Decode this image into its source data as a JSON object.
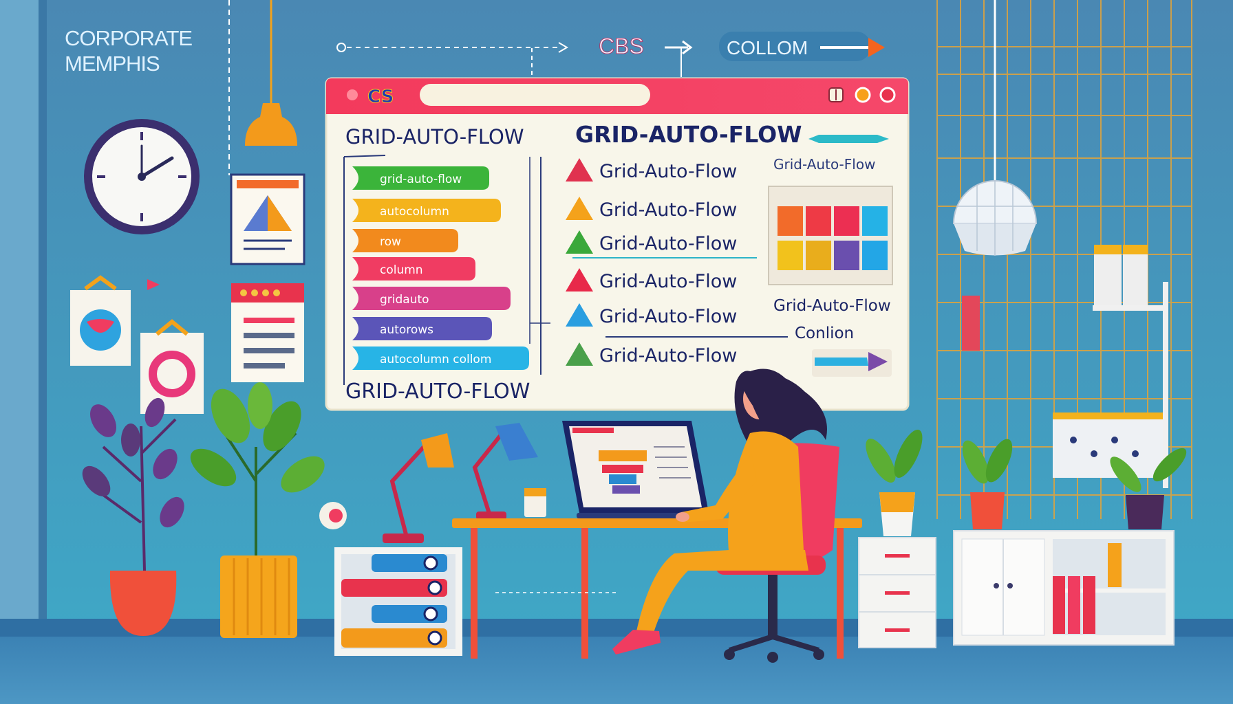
{
  "wall_sign": {
    "line1": "CORPORATE",
    "line2": "MEMPHIS"
  },
  "top_flow": {
    "label_cbs": "CBS",
    "label_collom": "COLLOM"
  },
  "browser": {
    "logo_text": "CS",
    "address_value": "",
    "heading_left": "GRID-AUTO-FLOW",
    "heading_right": "GRID-AUTO-FLOW",
    "heading_bottom": "GRID-AUTO-FLOW",
    "bars": [
      {
        "label": "grid-auto-flow",
        "color": "#3bb43a"
      },
      {
        "label": "autocolumn",
        "color": "#f4b31c"
      },
      {
        "label": "row",
        "color": "#f28a1d"
      },
      {
        "label": "column",
        "color": "#f03c62"
      },
      {
        "label": "gridauto",
        "color": "#d8408a"
      },
      {
        "label": "autorows",
        "color": "#5b55b8"
      },
      {
        "label": "autocolumn collom",
        "color": "#27b4e6"
      }
    ],
    "items": [
      {
        "label": "Grid-Auto-Flow",
        "color": "#e0324f"
      },
      {
        "label": "Grid-Auto-Flow",
        "color": "#f4a21b"
      },
      {
        "label": "Grid-Auto-Flow",
        "color": "#3aa83a"
      },
      {
        "label": "Grid-Auto-Flow",
        "color": "#e8294a"
      },
      {
        "label": "Grid-Auto-Flow",
        "color": "#2a9ee0"
      },
      {
        "label": "Grid-Auto-Flow",
        "color": "#4aa04a"
      }
    ],
    "side_label_top": "Grid-Auto-Flow",
    "side_label_mid": "Grid-Auto-Flow",
    "side_label_bottom": "Conlion",
    "grid_colors": [
      "#f26b2a",
      "#ee3a45",
      "#ec2f52",
      "#25b2e6",
      "#f2c21c",
      "#e9ad1c",
      "#6a4fae",
      "#23a6e6"
    ]
  },
  "colors": {
    "wall": "#4b8fb8",
    "floor": "#3e86b5",
    "titlebar": "#f03c60",
    "ink": "#1a2466"
  }
}
